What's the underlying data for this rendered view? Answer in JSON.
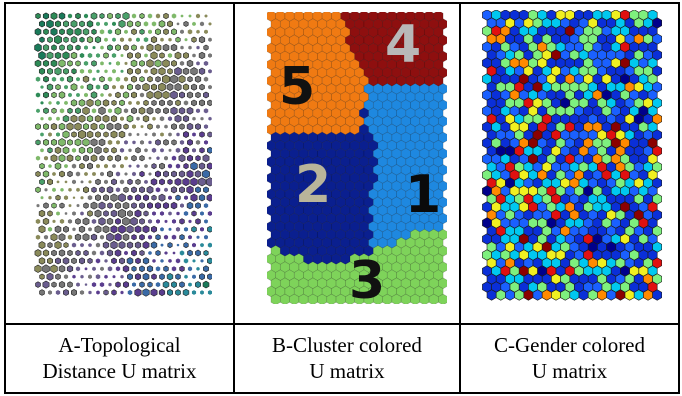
{
  "panels": [
    {
      "id": "A",
      "caption_line1": "A-Topological",
      "caption_line2": "Distance U matrix",
      "style": "topological-distance",
      "palette": [
        "#1a7a5a",
        "#2e8b57",
        "#4aa06a",
        "#7fb96a",
        "#8a8a5a",
        "#777777",
        "#6a5d8e",
        "#5a3d8e",
        "#3a6aa6",
        "#2a8a9a"
      ]
    },
    {
      "id": "B",
      "caption_line1": "B-Cluster colored",
      "caption_line2": "U matrix",
      "style": "cluster",
      "clusters": [
        {
          "label": "1",
          "color": "#1e88e0"
        },
        {
          "label": "2",
          "color": "#0a1f8f"
        },
        {
          "label": "3",
          "color": "#7ed35a"
        },
        {
          "label": "4",
          "color": "#8e0f0f"
        },
        {
          "label": "5",
          "color": "#f07a12"
        }
      ]
    },
    {
      "id": "C",
      "caption_line1": "C-Gender colored",
      "caption_line2": "U matrix",
      "style": "gender",
      "palette": [
        "#0a2fd8",
        "#1a60ff",
        "#00c8f0",
        "#7ef07e",
        "#f0f020",
        "#ff8a00",
        "#e01010",
        "#8b0000",
        "#00008b"
      ]
    }
  ]
}
